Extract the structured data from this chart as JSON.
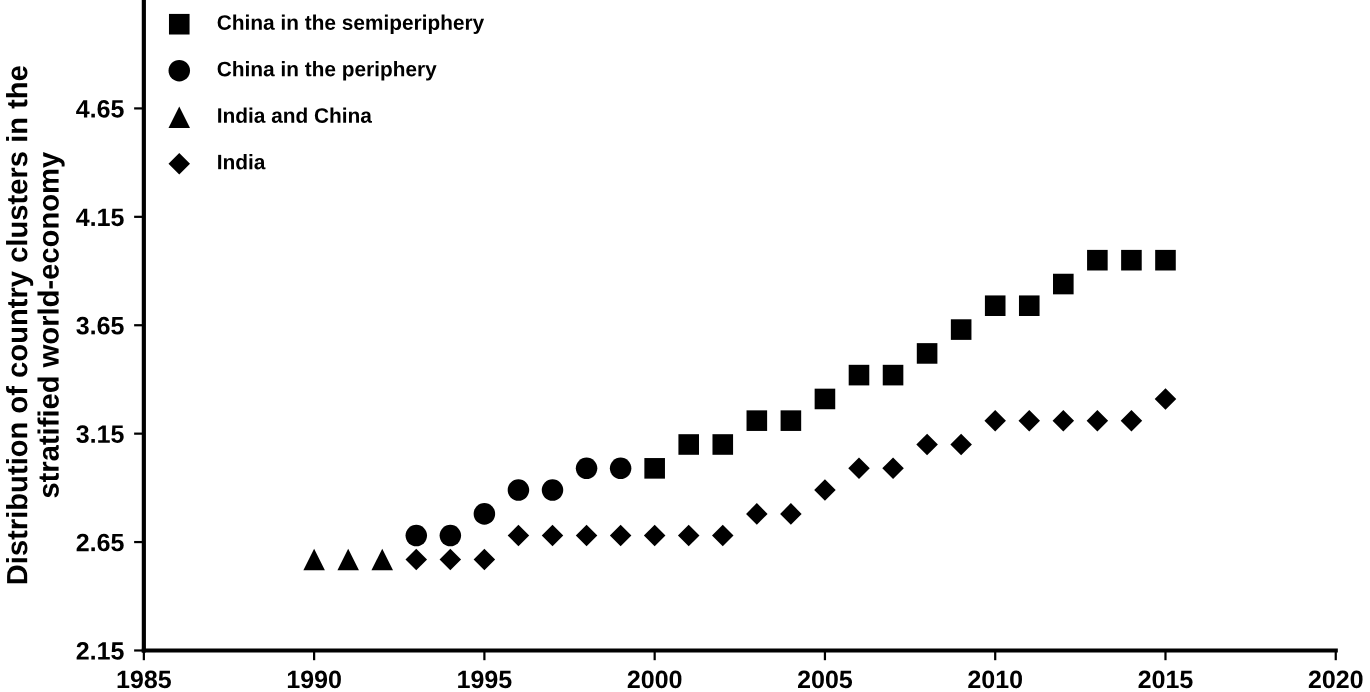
{
  "chart_data": {
    "type": "scatter",
    "ylabel": "Distribution of country clusters in the\nstratified world-economy",
    "xlim": [
      1985,
      2020
    ],
    "xticks": [
      1985,
      1990,
      1995,
      2000,
      2005,
      2010,
      2015,
      2020
    ],
    "ylim": [
      2.15,
      5.15
    ],
    "yticks": [
      2.15,
      2.65,
      3.15,
      3.65,
      4.15,
      4.65
    ],
    "grid": false,
    "legend": "top left",
    "series": [
      {
        "name": "China in the semiperiphery",
        "color": "#000000",
        "marker": "square",
        "x": [
          2000,
          2001,
          2002,
          2003,
          2004,
          2005,
          2006,
          2007,
          2008,
          2009,
          2010,
          2011,
          2012,
          2013,
          2014,
          2015
        ],
        "values": [
          2.99,
          3.1,
          3.1,
          3.21,
          3.21,
          3.31,
          3.42,
          3.42,
          3.52,
          3.63,
          3.74,
          3.74,
          3.84,
          3.95,
          3.95,
          3.95
        ]
      },
      {
        "name": "China in the periphery",
        "color": "#000000",
        "marker": "circle",
        "x": [
          1993,
          1994,
          1995,
          1996,
          1997,
          1998,
          1999
        ],
        "values": [
          2.68,
          2.68,
          2.78,
          2.89,
          2.89,
          2.99,
          2.99
        ]
      },
      {
        "name": "India and China",
        "color": "#000000",
        "marker": "triangle",
        "x": [
          1990,
          1991,
          1992
        ],
        "values": [
          2.57,
          2.57,
          2.57
        ]
      },
      {
        "name": "India",
        "color": "#000000",
        "marker": "diamond",
        "x": [
          1993,
          1994,
          1995,
          1996,
          1997,
          1998,
          1999,
          2000,
          2001,
          2002,
          2003,
          2004,
          2005,
          2006,
          2007,
          2008,
          2009,
          2010,
          2011,
          2012,
          2013,
          2014,
          2015
        ],
        "values": [
          2.57,
          2.57,
          2.57,
          2.68,
          2.68,
          2.68,
          2.68,
          2.68,
          2.68,
          2.68,
          2.78,
          2.78,
          2.89,
          2.99,
          2.99,
          3.1,
          3.1,
          3.21,
          3.21,
          3.21,
          3.21,
          3.21,
          3.31
        ]
      }
    ]
  }
}
